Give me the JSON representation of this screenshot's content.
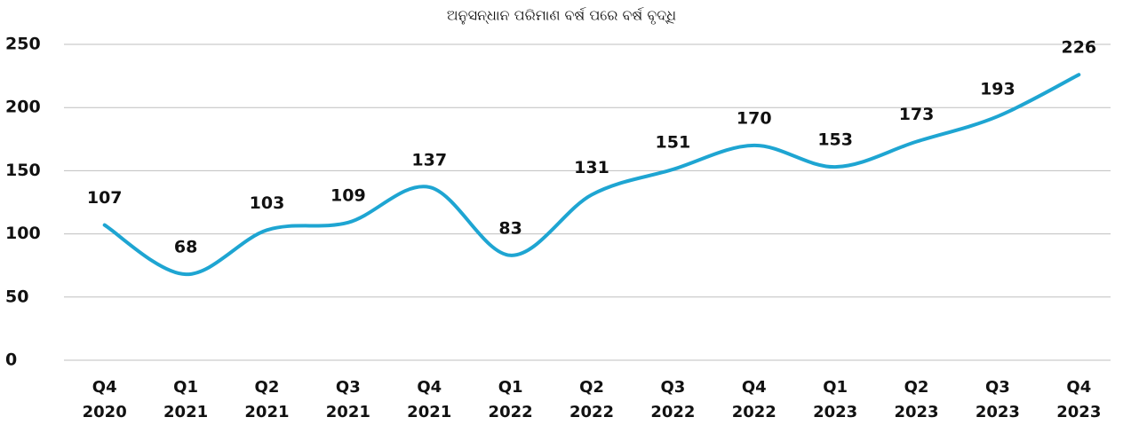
{
  "chart_data": {
    "type": "line",
    "title": "ଅନୁସନ୍ଧାନ ପରିମାଣ ବର୍ଷ ପରେ ବର୍ଷ ବୃଦ୍ଧି",
    "categories": [
      [
        "Q4",
        "2020"
      ],
      [
        "Q1",
        "2021"
      ],
      [
        "Q2",
        "2021"
      ],
      [
        "Q3",
        "2021"
      ],
      [
        "Q4",
        "2021"
      ],
      [
        "Q1",
        "2022"
      ],
      [
        "Q2",
        "2022"
      ],
      [
        "Q3",
        "2022"
      ],
      [
        "Q4",
        "2022"
      ],
      [
        "Q1",
        "2023"
      ],
      [
        "Q2",
        "2023"
      ],
      [
        "Q3",
        "2023"
      ],
      [
        "Q4",
        "2023"
      ]
    ],
    "values": [
      107,
      68,
      103,
      109,
      137,
      83,
      131,
      151,
      170,
      153,
      173,
      193,
      226
    ],
    "color": "#1ea5d2",
    "smooth": true,
    "data_labels": true,
    "ylim": [
      0,
      250
    ],
    "yticks": [
      0,
      50,
      100,
      150,
      200,
      250
    ],
    "grid": true
  }
}
